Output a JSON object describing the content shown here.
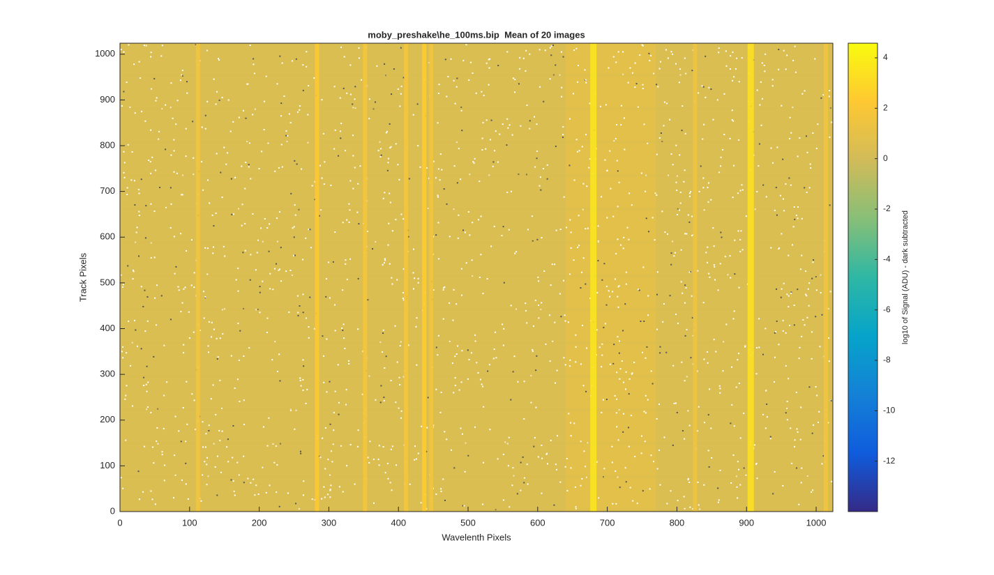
{
  "chart_data": {
    "type": "heatmap",
    "title": "moby_preshake\\he_100ms.bip  Mean of 20 images",
    "x_label": "Wavelenth Pixels",
    "y_label": "Track Pixels",
    "xlim": [
      0,
      1024
    ],
    "ylim": [
      0,
      1024
    ],
    "xticks": [
      0,
      100,
      200,
      300,
      400,
      500,
      600,
      700,
      800,
      900,
      1000
    ],
    "yticks": [
      0,
      100,
      200,
      300,
      400,
      500,
      600,
      700,
      800,
      900,
      1000
    ],
    "background": 0.4,
    "glow": {
      "x": [
        640,
        770
      ],
      "value": 1.2
    },
    "lines": {
      "x": [
        112,
        283,
        352,
        411,
        437,
        447,
        680,
        826,
        906,
        1014
      ],
      "values": [
        1.5,
        2.2,
        1.8,
        1.8,
        2.4,
        1.6,
        3.5,
        1.4,
        3.3,
        1.5
      ]
    },
    "colorbar": {
      "label": "log10 of Signal (ADU) - dark subtracted",
      "lim": [
        -14,
        4.58
      ],
      "ticks": [
        4,
        2,
        0,
        -2,
        -4,
        -6,
        -8,
        -10,
        -12
      ],
      "colormap": [
        "#352a87",
        "#0f5cdd",
        "#1481d6",
        "#06a4ca",
        "#2eb7a4",
        "#87bf77",
        "#d1bb59",
        "#fec832",
        "#f9fb0e"
      ]
    }
  }
}
